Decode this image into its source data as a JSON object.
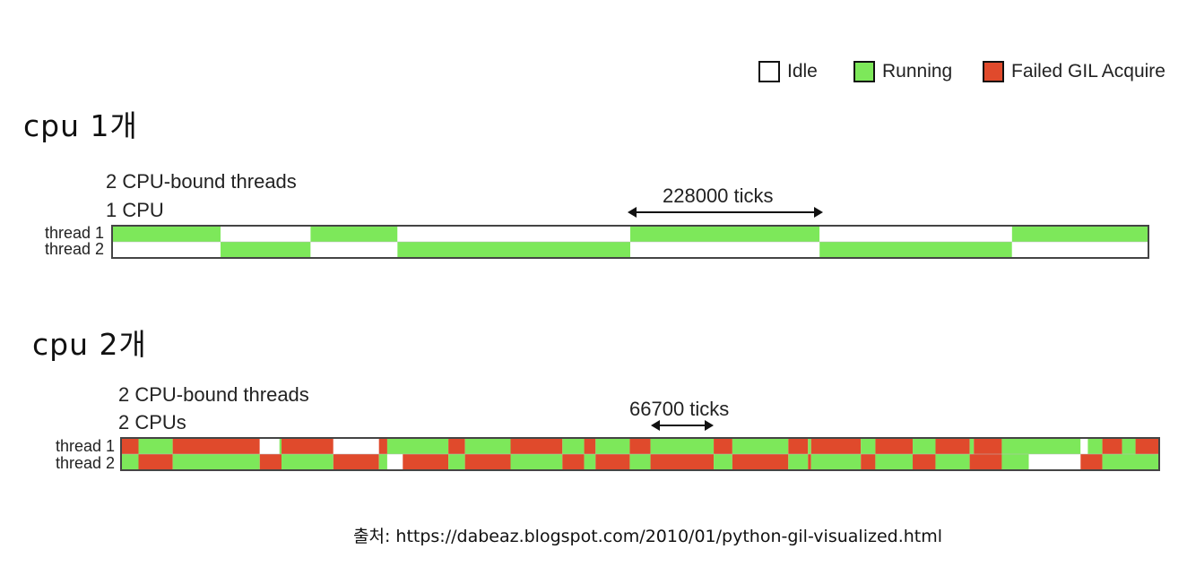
{
  "legend": {
    "items": [
      {
        "label": "Idle",
        "color": "#ffffff"
      },
      {
        "label": "Running",
        "color": "#7de85a"
      },
      {
        "label": "Failed GIL Acquire",
        "color": "#e04a2c"
      }
    ]
  },
  "sections": [
    {
      "heading": "cpu 1개",
      "title_line1": "2 CPU-bound threads",
      "title_line2": "1 CPU",
      "ticks_label": "228000 ticks",
      "threads": [
        {
          "label": "thread 1",
          "segments": [
            {
              "state": "running",
              "start": 0.0,
              "end": 0.104
            },
            {
              "state": "idle",
              "start": 0.104,
              "end": 0.191
            },
            {
              "state": "running",
              "start": 0.191,
              "end": 0.275
            },
            {
              "state": "idle",
              "start": 0.275,
              "end": 0.5
            },
            {
              "state": "running",
              "start": 0.5,
              "end": 0.683
            },
            {
              "state": "idle",
              "start": 0.683,
              "end": 0.869
            },
            {
              "state": "running",
              "start": 0.869,
              "end": 1.0
            }
          ]
        },
        {
          "label": "thread 2",
          "segments": [
            {
              "state": "idle",
              "start": 0.0,
              "end": 0.104
            },
            {
              "state": "running",
              "start": 0.104,
              "end": 0.191
            },
            {
              "state": "idle",
              "start": 0.191,
              "end": 0.275
            },
            {
              "state": "running",
              "start": 0.275,
              "end": 0.5
            },
            {
              "state": "idle",
              "start": 0.5,
              "end": 0.683
            },
            {
              "state": "running",
              "start": 0.683,
              "end": 0.869
            },
            {
              "state": "idle",
              "start": 0.869,
              "end": 1.0
            }
          ]
        }
      ]
    },
    {
      "heading": "cpu 2개",
      "title_line1": "2 CPU-bound threads",
      "title_line2": "2 CPUs",
      "ticks_label": "66700 ticks",
      "threads": [
        {
          "label": "thread 1",
          "segments": [
            {
              "state": "failed",
              "start": 0.0,
              "end": 0.016
            },
            {
              "state": "running",
              "start": 0.016,
              "end": 0.049
            },
            {
              "state": "failed",
              "start": 0.049,
              "end": 0.133
            },
            {
              "state": "idle",
              "start": 0.133,
              "end": 0.152
            },
            {
              "state": "running",
              "start": 0.152,
              "end": 0.154
            },
            {
              "state": "failed",
              "start": 0.154,
              "end": 0.204
            },
            {
              "state": "idle",
              "start": 0.204,
              "end": 0.248
            },
            {
              "state": "failed",
              "start": 0.248,
              "end": 0.256
            },
            {
              "state": "running",
              "start": 0.256,
              "end": 0.315
            },
            {
              "state": "failed",
              "start": 0.315,
              "end": 0.331
            },
            {
              "state": "running",
              "start": 0.331,
              "end": 0.375
            },
            {
              "state": "failed",
              "start": 0.375,
              "end": 0.425
            },
            {
              "state": "running",
              "start": 0.425,
              "end": 0.446
            },
            {
              "state": "failed",
              "start": 0.446,
              "end": 0.457
            },
            {
              "state": "running",
              "start": 0.457,
              "end": 0.49
            },
            {
              "state": "failed",
              "start": 0.49,
              "end": 0.51
            },
            {
              "state": "running",
              "start": 0.51,
              "end": 0.571
            },
            {
              "state": "failed",
              "start": 0.571,
              "end": 0.589
            },
            {
              "state": "running",
              "start": 0.589,
              "end": 0.643
            },
            {
              "state": "failed",
              "start": 0.643,
              "end": 0.662
            },
            {
              "state": "running",
              "start": 0.662,
              "end": 0.665
            },
            {
              "state": "failed",
              "start": 0.665,
              "end": 0.713
            },
            {
              "state": "running",
              "start": 0.713,
              "end": 0.727
            },
            {
              "state": "failed",
              "start": 0.727,
              "end": 0.763
            },
            {
              "state": "running",
              "start": 0.763,
              "end": 0.785
            },
            {
              "state": "failed",
              "start": 0.785,
              "end": 0.818
            },
            {
              "state": "running",
              "start": 0.818,
              "end": 0.822
            },
            {
              "state": "failed",
              "start": 0.822,
              "end": 0.849
            },
            {
              "state": "running",
              "start": 0.849,
              "end": 0.925
            },
            {
              "state": "idle",
              "start": 0.925,
              "end": 0.932
            },
            {
              "state": "running",
              "start": 0.932,
              "end": 0.946
            },
            {
              "state": "failed",
              "start": 0.946,
              "end": 0.965
            },
            {
              "state": "running",
              "start": 0.965,
              "end": 0.978
            },
            {
              "state": "failed",
              "start": 0.978,
              "end": 1.0
            }
          ]
        },
        {
          "label": "thread 2",
          "segments": [
            {
              "state": "running",
              "start": 0.0,
              "end": 0.016
            },
            {
              "state": "failed",
              "start": 0.016,
              "end": 0.049
            },
            {
              "state": "running",
              "start": 0.049,
              "end": 0.133
            },
            {
              "state": "failed",
              "start": 0.133,
              "end": 0.154
            },
            {
              "state": "running",
              "start": 0.154,
              "end": 0.204
            },
            {
              "state": "failed",
              "start": 0.204,
              "end": 0.248
            },
            {
              "state": "running",
              "start": 0.248,
              "end": 0.256
            },
            {
              "state": "idle",
              "start": 0.256,
              "end": 0.271
            },
            {
              "state": "failed",
              "start": 0.271,
              "end": 0.315
            },
            {
              "state": "running",
              "start": 0.315,
              "end": 0.331
            },
            {
              "state": "failed",
              "start": 0.331,
              "end": 0.375
            },
            {
              "state": "running",
              "start": 0.375,
              "end": 0.425
            },
            {
              "state": "failed",
              "start": 0.425,
              "end": 0.446
            },
            {
              "state": "running",
              "start": 0.446,
              "end": 0.457
            },
            {
              "state": "failed",
              "start": 0.457,
              "end": 0.49
            },
            {
              "state": "running",
              "start": 0.49,
              "end": 0.51
            },
            {
              "state": "failed",
              "start": 0.51,
              "end": 0.571
            },
            {
              "state": "running",
              "start": 0.571,
              "end": 0.589
            },
            {
              "state": "failed",
              "start": 0.589,
              "end": 0.643
            },
            {
              "state": "running",
              "start": 0.643,
              "end": 0.662
            },
            {
              "state": "failed",
              "start": 0.662,
              "end": 0.665
            },
            {
              "state": "running",
              "start": 0.665,
              "end": 0.713
            },
            {
              "state": "failed",
              "start": 0.713,
              "end": 0.727
            },
            {
              "state": "running",
              "start": 0.727,
              "end": 0.763
            },
            {
              "state": "failed",
              "start": 0.763,
              "end": 0.785
            },
            {
              "state": "running",
              "start": 0.785,
              "end": 0.818
            },
            {
              "state": "failed",
              "start": 0.818,
              "end": 0.849
            },
            {
              "state": "running",
              "start": 0.849,
              "end": 0.875
            },
            {
              "state": "idle",
              "start": 0.875,
              "end": 0.925
            },
            {
              "state": "failed",
              "start": 0.925,
              "end": 0.946
            },
            {
              "state": "running",
              "start": 0.946,
              "end": 1.0
            }
          ]
        }
      ]
    }
  ],
  "source": {
    "text": "출처: https://dabeaz.blogspot.com/2010/01/python-gil-visualized.html"
  }
}
